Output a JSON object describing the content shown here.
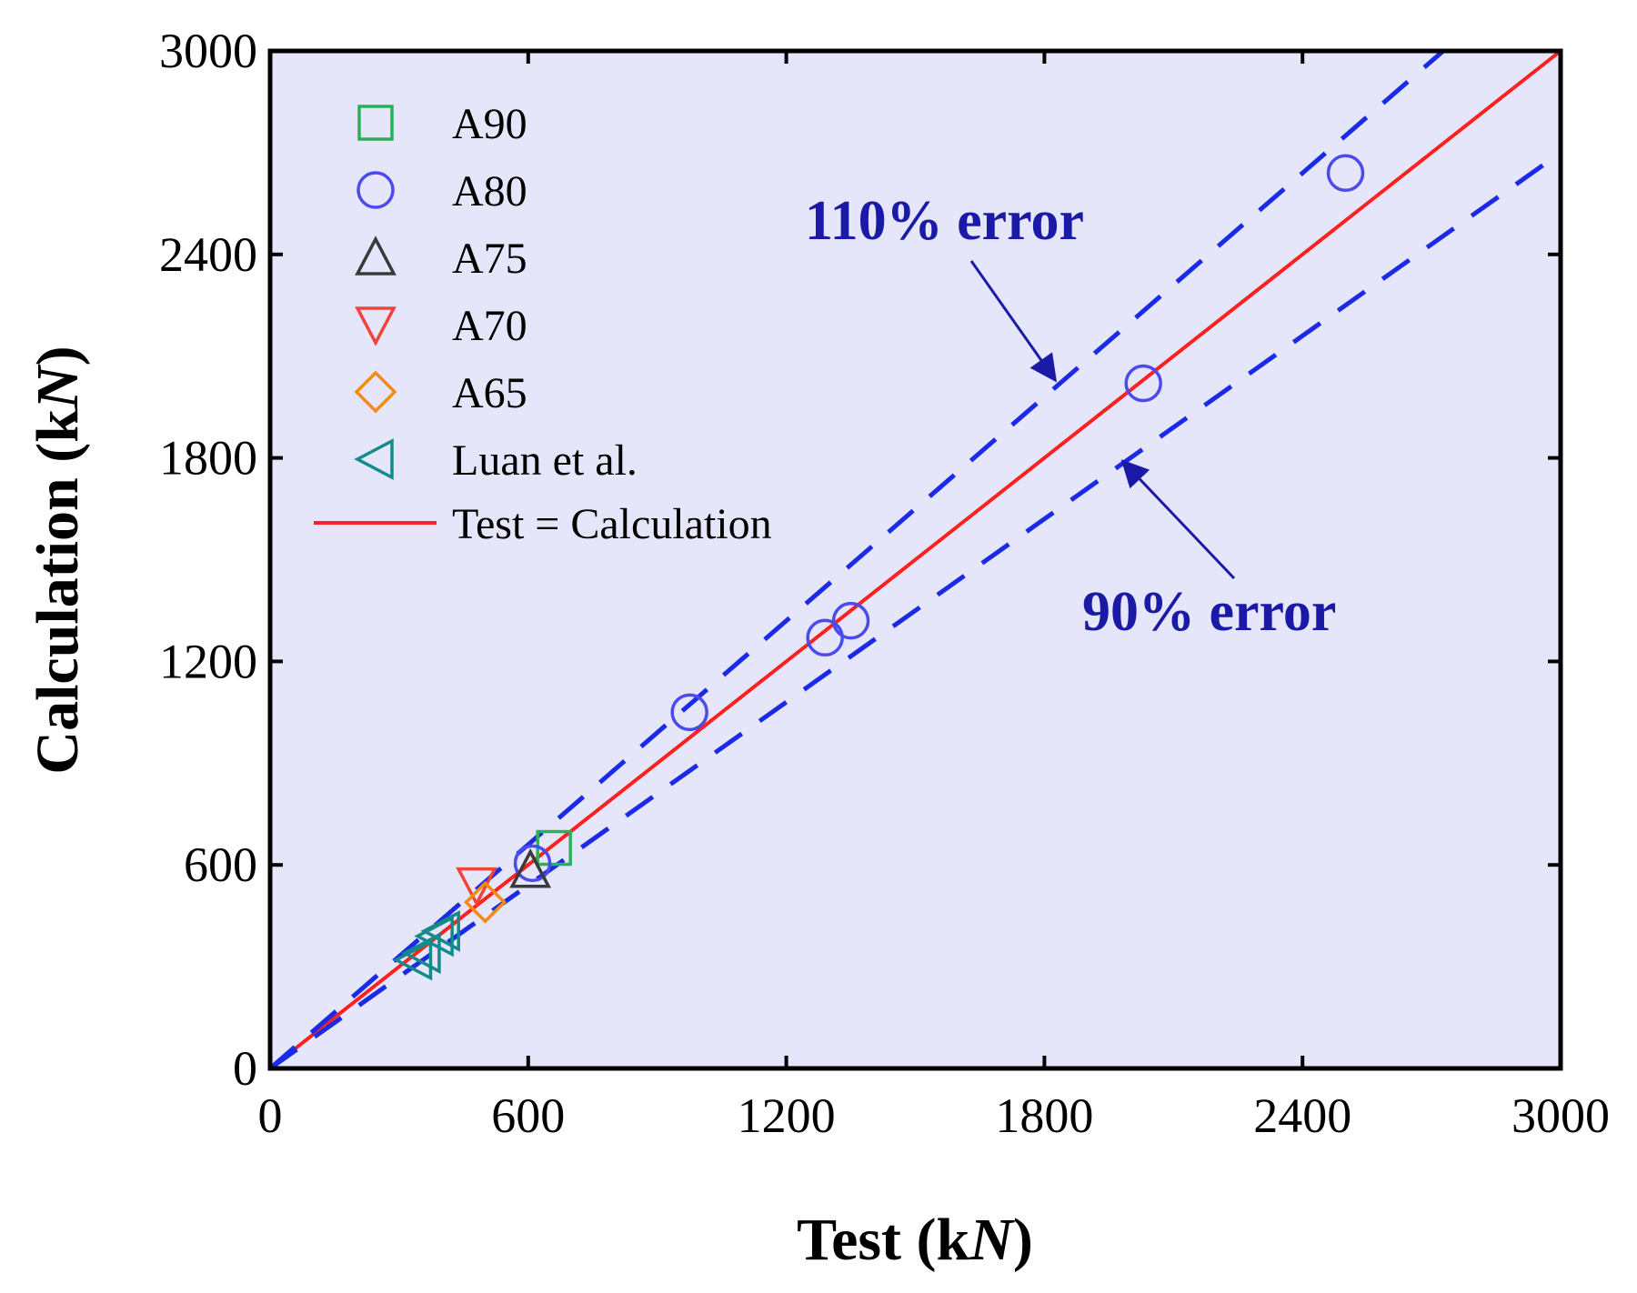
{
  "chart_data": {
    "type": "scatter",
    "title": "",
    "xlabel": "Test (kN)",
    "ylabel": "Calculation (kN)",
    "xlim": [
      0,
      3000
    ],
    "ylim": [
      0,
      3000
    ],
    "xticks": [
      0,
      600,
      1200,
      1800,
      2400,
      3000
    ],
    "yticks": [
      0,
      600,
      1200,
      1800,
      2400,
      3000
    ],
    "grid": false,
    "legend_position": "top-left",
    "background_color": "#e6e6fa",
    "series": [
      {
        "name": "A90",
        "marker": "square",
        "color": "#2bb05a",
        "points": [
          [
            660,
            650
          ]
        ]
      },
      {
        "name": "A80",
        "marker": "circle",
        "color": "#4a4aee",
        "points": [
          [
            610,
            605
          ],
          [
            975,
            1050
          ],
          [
            1290,
            1270
          ],
          [
            1350,
            1320
          ],
          [
            2030,
            2020
          ],
          [
            2500,
            2640
          ]
        ]
      },
      {
        "name": "A75",
        "marker": "triangle-up",
        "color": "#3a3a3a",
        "points": [
          [
            605,
            585
          ]
        ]
      },
      {
        "name": "A70",
        "marker": "triangle-down",
        "color": "#f0443a",
        "points": [
          [
            480,
            540
          ]
        ]
      },
      {
        "name": "A65",
        "marker": "diamond",
        "color": "#f58a1a",
        "points": [
          [
            500,
            490
          ]
        ]
      },
      {
        "name": "Luan et al.",
        "marker": "triangle-left",
        "color": "#148a8a",
        "points": [
          [
            335,
            320
          ],
          [
            355,
            340
          ],
          [
            385,
            390
          ],
          [
            400,
            405
          ]
        ]
      }
    ],
    "lines": [
      {
        "name": "Test = Calculation",
        "style": "solid",
        "color": "#ff2020",
        "slope": 1.0
      },
      {
        "label": "110% error",
        "style": "dashed",
        "color": "#1a2ae6",
        "slope": 1.1
      },
      {
        "label": "90% error",
        "style": "dashed",
        "color": "#1a2ae6",
        "slope": 0.9
      }
    ],
    "annotations": [
      {
        "text": "110% error",
        "color": "#1a1aa6",
        "arrow_to": [
          1830,
          2020
        ]
      },
      {
        "text": "90% error",
        "color": "#1a1aa6",
        "arrow_to": [
          1970,
          1800
        ]
      }
    ]
  }
}
